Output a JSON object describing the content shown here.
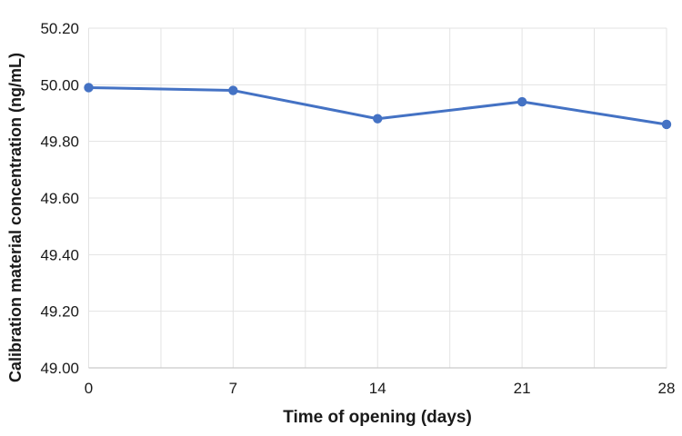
{
  "chart_data": {
    "type": "line",
    "xlabel": "Time of opening (days)",
    "ylabel": "Calibration material concentration (ng/mL)",
    "x": [
      0,
      7,
      14,
      21,
      28
    ],
    "values": [
      49.99,
      49.98,
      49.88,
      49.94,
      49.86
    ],
    "x_tick_labels": [
      "0",
      "7",
      "14",
      "21",
      "28"
    ],
    "y_tick_labels": [
      "50.20",
      "50.00",
      "49.80",
      "49.60",
      "49.40",
      "49.20",
      "49.00"
    ],
    "xlim": [
      0,
      28
    ],
    "ylim": [
      49.0,
      50.2
    ],
    "x_grid_step": 3.5,
    "grid": "on",
    "legend": "none",
    "colors": {
      "line": "#4472C4",
      "marker": "#4472C4",
      "grid": "#e3e3e3",
      "axis": "#c9c9c9",
      "text": "#1a1a1a",
      "background": "#ffffff"
    }
  }
}
